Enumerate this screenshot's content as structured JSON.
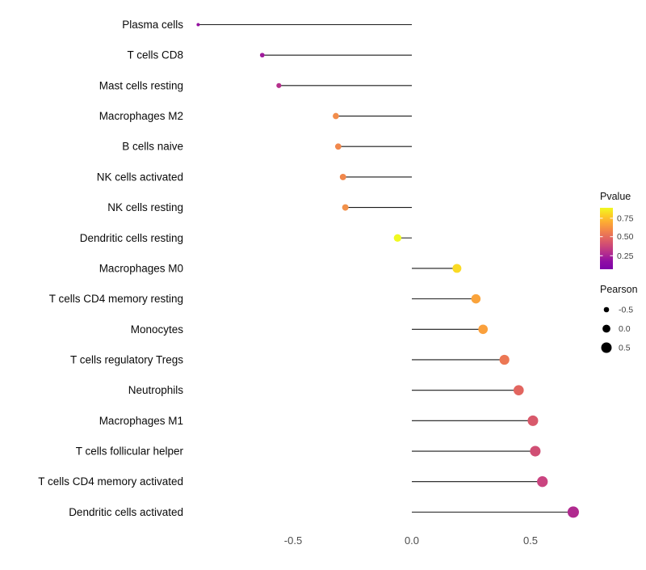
{
  "chart_data": {
    "type": "scatter",
    "style": "lollipop",
    "title": "",
    "xlabel": "",
    "ylabel": "",
    "grid": false,
    "baseline": 0,
    "x_axis": {
      "ticks": [
        -0.5,
        0.0,
        0.5
      ],
      "tick_labels": [
        "-0.5",
        "0.0",
        "0.5"
      ],
      "range": [
        -0.95,
        0.78
      ]
    },
    "points": [
      {
        "category": "Plasma cells",
        "pearson": -0.9,
        "color": "#9511A1"
      },
      {
        "category": "T cells CD8",
        "pearson": -0.63,
        "color": "#A01A9C"
      },
      {
        "category": "Mast cells resting",
        "pearson": -0.56,
        "color": "#B52F8C"
      },
      {
        "category": "Macrophages M2",
        "pearson": -0.32,
        "color": "#F28D4B"
      },
      {
        "category": "B cells naive",
        "pearson": -0.31,
        "color": "#F1884D"
      },
      {
        "category": "NK cells activated",
        "pearson": -0.29,
        "color": "#F1874B"
      },
      {
        "category": "NK cells resting",
        "pearson": -0.28,
        "color": "#F2914A"
      },
      {
        "category": "Dendritic cells resting",
        "pearson": -0.06,
        "color": "#F0F921"
      },
      {
        "category": "Macrophages M0",
        "pearson": 0.19,
        "color": "#FADA24"
      },
      {
        "category": "T cells CD4 memory resting",
        "pearson": 0.27,
        "color": "#FAA33B"
      },
      {
        "category": "Monocytes",
        "pearson": 0.3,
        "color": "#FAA03C"
      },
      {
        "category": "T cells regulatory Tregs",
        "pearson": 0.39,
        "color": "#EC7754"
      },
      {
        "category": "Neutrophils",
        "pearson": 0.45,
        "color": "#E2655F"
      },
      {
        "category": "Macrophages M1",
        "pearson": 0.51,
        "color": "#D8596B"
      },
      {
        "category": "T cells follicular helper",
        "pearson": 0.52,
        "color": "#D04F74"
      },
      {
        "category": "T cells CD4 memory activated",
        "pearson": 0.55,
        "color": "#CA4480"
      },
      {
        "category": "Dendritic cells activated",
        "pearson": 0.68,
        "color": "#B02A8F"
      }
    ],
    "legends": {
      "pvalue": {
        "title": "Pvalue",
        "ticks": [
          "0.75",
          "0.50",
          "0.25"
        ],
        "gradient": [
          "#F0F921",
          "#FCCE25",
          "#FCA636",
          "#F2844B",
          "#E16462",
          "#CC4778",
          "#B12A90",
          "#8F0DA4",
          "#7E03A8"
        ]
      },
      "pearson": {
        "title": "Pearson",
        "items": [
          {
            "label": "-0.5",
            "value": -0.5
          },
          {
            "label": "0.0",
            "value": 0.0
          },
          {
            "label": "0.5",
            "value": 0.5
          }
        ]
      }
    }
  }
}
